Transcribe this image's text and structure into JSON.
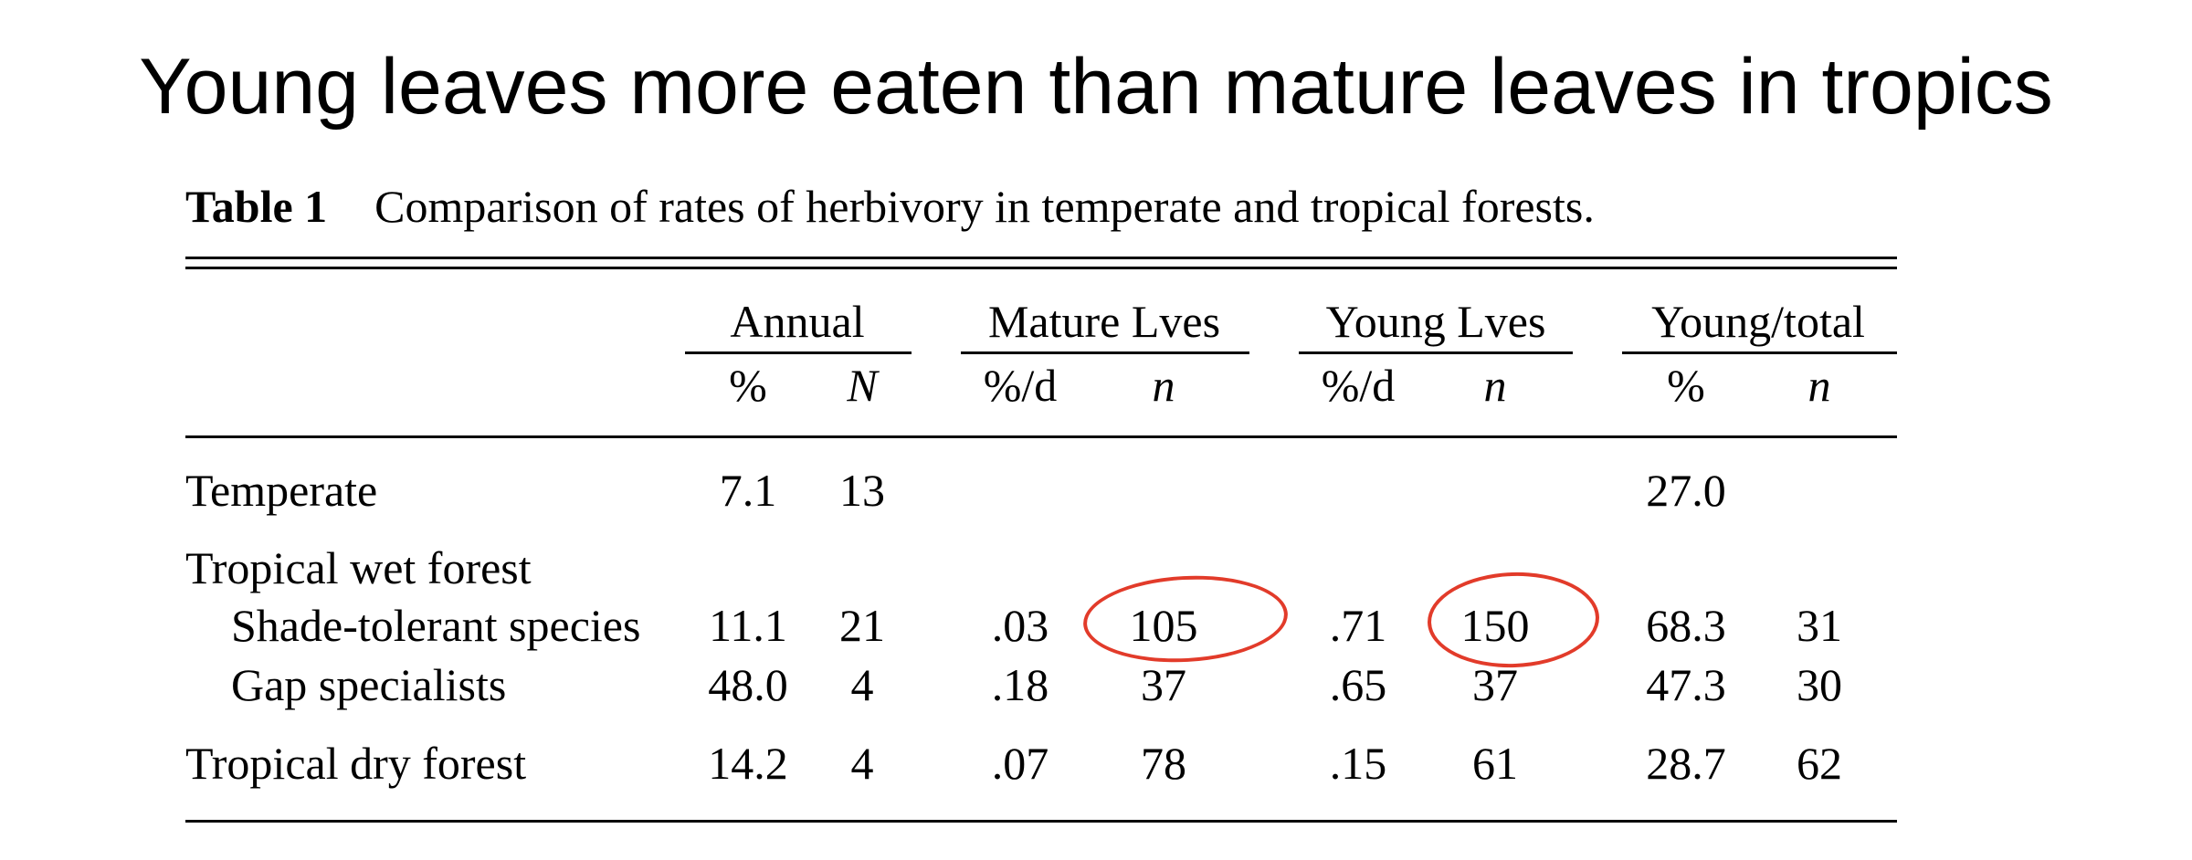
{
  "slide_title": "Young leaves more eaten than mature leaves in tropics",
  "table": {
    "label": "Table 1",
    "caption": "Comparison of rates of herbivory in temperate and tropical forests.",
    "column_groups": [
      "Annual",
      "Mature Lves",
      "Young Lves",
      "Young/total"
    ],
    "sub_headers": [
      "%",
      "N",
      "%/d",
      "n",
      "%/d",
      "n",
      "%",
      "n"
    ],
    "rows": [
      {
        "label": "Temperate",
        "annual_pct": "7.1",
        "annual_N": "13",
        "mature_pct_d": "",
        "mature_n": "",
        "young_pct_d": "",
        "young_n": "",
        "young_total_pct": "27.0",
        "young_total_n": ""
      },
      {
        "label": "Tropical wet forest",
        "annual_pct": "",
        "annual_N": "",
        "mature_pct_d": "",
        "mature_n": "",
        "young_pct_d": "",
        "young_n": "",
        "young_total_pct": "",
        "young_total_n": ""
      },
      {
        "label": "Shade-tolerant species",
        "annual_pct": "11.1",
        "annual_N": "21",
        "mature_pct_d": ".03",
        "mature_n": "105",
        "young_pct_d": ".71",
        "young_n": "150",
        "young_total_pct": "68.3",
        "young_total_n": "31"
      },
      {
        "label": "Gap specialists",
        "annual_pct": "48.0",
        "annual_N": "4",
        "mature_pct_d": ".18",
        "mature_n": "37",
        "young_pct_d": ".65",
        "young_n": "37",
        "young_total_pct": "47.3",
        "young_total_n": "30"
      },
      {
        "label": "Tropical dry forest",
        "annual_pct": "14.2",
        "annual_N": "4",
        "mature_pct_d": ".07",
        "mature_n": "78",
        "young_pct_d": ".15",
        "young_n": "61",
        "young_total_pct": "28.7",
        "young_total_n": "62"
      }
    ]
  },
  "annotations": {
    "color": "#e23b2a"
  }
}
